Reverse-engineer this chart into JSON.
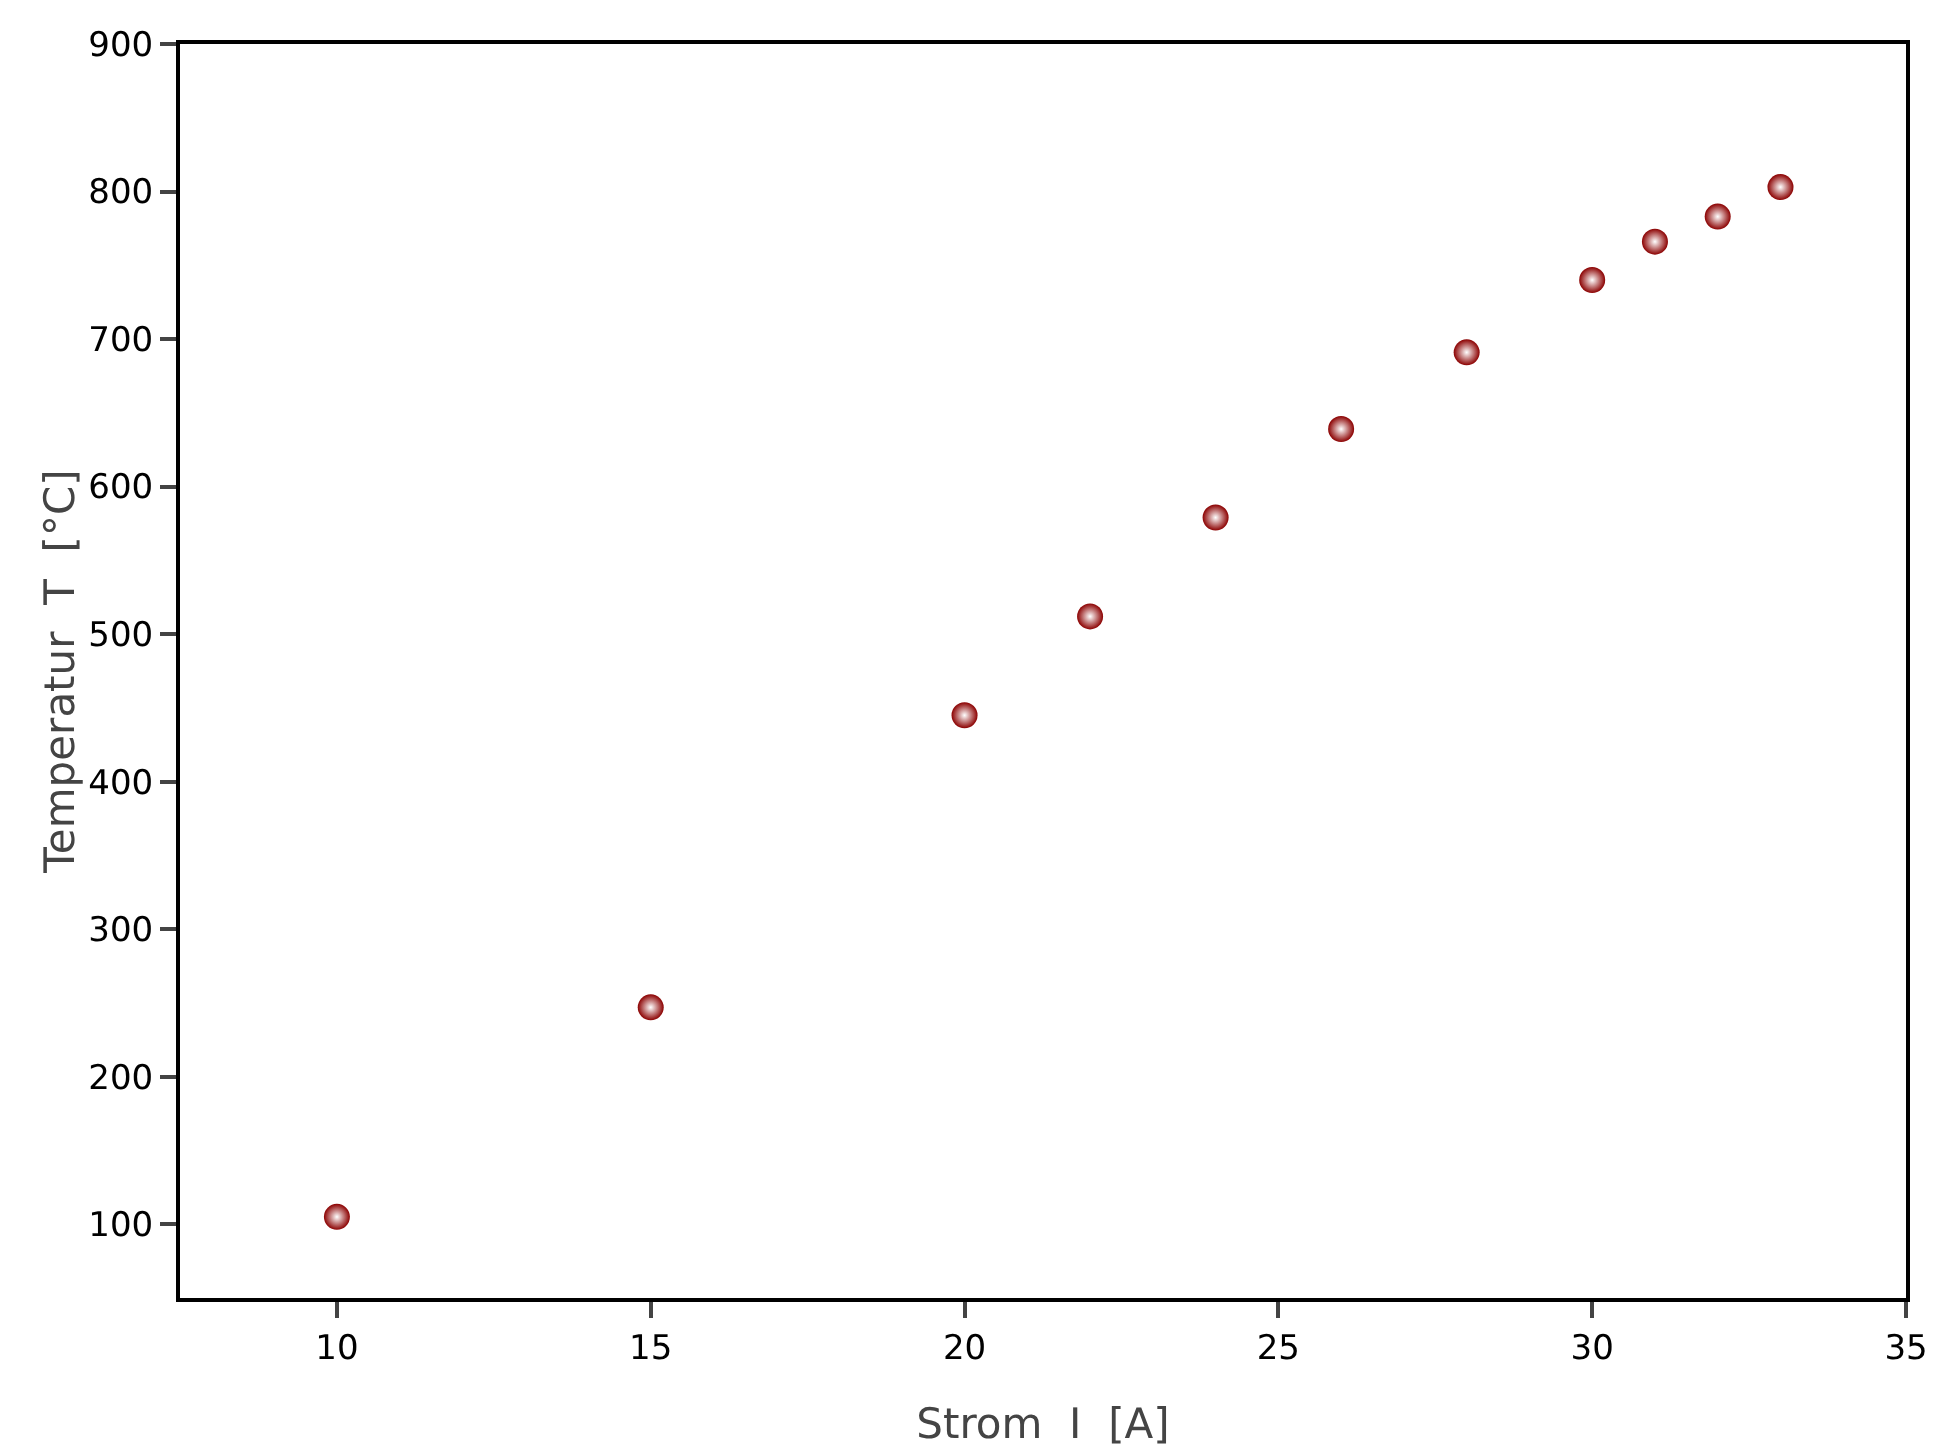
{
  "chart_data": {
    "type": "scatter",
    "xlabel": "Strom  I  [A]",
    "ylabel": "Temperatur  T  [°C]",
    "x": [
      10,
      15,
      20,
      22,
      24,
      26,
      28,
      30,
      31,
      32,
      33
    ],
    "values": [
      105,
      247,
      445,
      512,
      579,
      639,
      691,
      740,
      766,
      783,
      803
    ],
    "color": "#8b0000",
    "marker": "circle",
    "xlim": [
      7.5,
      35
    ],
    "xticks": [
      10,
      15,
      20,
      25,
      30,
      35
    ],
    "ylim": [
      50,
      900
    ],
    "yticks": [
      100,
      200,
      300,
      400,
      500,
      600,
      700,
      800,
      900
    ],
    "grid": false,
    "legend": false
  }
}
